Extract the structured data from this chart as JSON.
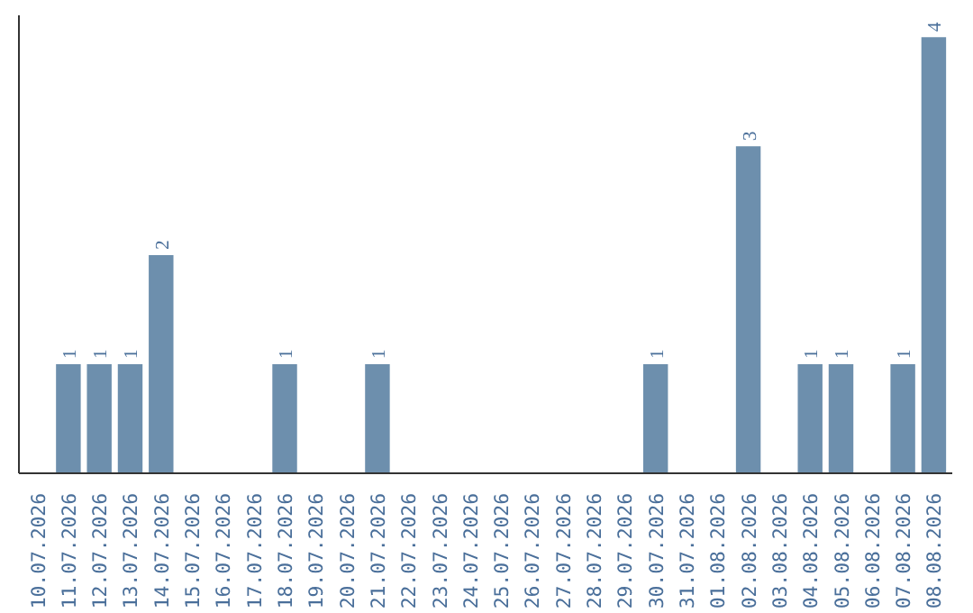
{
  "chart_data": {
    "type": "bar",
    "categories": [
      "10.07.2026",
      "11.07.2026",
      "12.07.2026",
      "13.07.2026",
      "14.07.2026",
      "15.07.2026",
      "16.07.2026",
      "17.07.2026",
      "18.07.2026",
      "19.07.2026",
      "20.07.2026",
      "21.07.2026",
      "22.07.2026",
      "23.07.2026",
      "24.07.2026",
      "25.07.2026",
      "26.07.2026",
      "27.07.2026",
      "28.07.2026",
      "29.07.2026",
      "30.07.2026",
      "31.07.2026",
      "01.08.2026",
      "02.08.2026",
      "03.08.2026",
      "04.08.2026",
      "05.08.2026",
      "06.08.2026",
      "07.08.2026",
      "08.08.2026"
    ],
    "values": [
      0,
      1,
      1,
      1,
      2,
      0,
      0,
      0,
      1,
      0,
      0,
      1,
      0,
      0,
      0,
      0,
      0,
      0,
      0,
      0,
      1,
      0,
      0,
      3,
      0,
      1,
      1,
      0,
      1,
      4
    ],
    "value_labels": [
      null,
      "1",
      "1",
      "1",
      "2",
      null,
      null,
      null,
      "1",
      null,
      null,
      "1",
      null,
      null,
      null,
      null,
      null,
      null,
      null,
      null,
      "1",
      null,
      null,
      "3",
      null,
      "1",
      "1",
      null,
      "1",
      "4"
    ],
    "color": "#6d8fad",
    "grid": false,
    "tick_labels": "x"
  }
}
